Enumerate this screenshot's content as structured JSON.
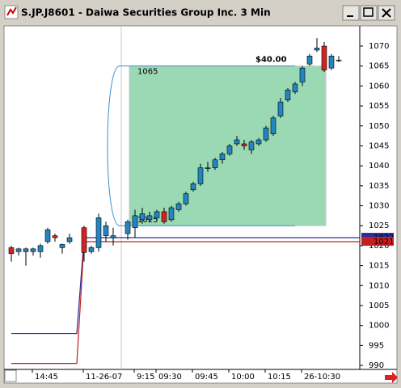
{
  "chart_data": {
    "type": "candlestick",
    "title": "S.JP.J8601 - Daiwa Securities Group Inc. 3 Min",
    "categories": [
      null,
      null,
      null,
      "14:45",
      null,
      null,
      null,
      null,
      null,
      null,
      "11-26-07",
      null,
      null,
      null,
      null,
      null,
      null,
      "9:15",
      null,
      null,
      "09:30",
      null,
      null,
      null,
      null,
      "09:45",
      null,
      null,
      null,
      null,
      "10:00",
      null,
      null,
      null,
      null,
      "10:15",
      null,
      null,
      null,
      null,
      "26-10:30",
      null,
      null,
      null,
      null,
      null
    ],
    "open": [
      1019.5,
      1018.5,
      1018.5,
      1018.5,
      1018.5,
      1021,
      1022.5,
      1019.5,
      1021,
      null,
      1024.5,
      1018.5,
      1019.5,
      1022.5,
      1022,
      null,
      1023,
      1024.5,
      1026.5,
      1026.5,
      1027,
      1028.5,
      1026.5,
      1029,
      1030.5,
      1034,
      1035.5,
      1039.5,
      1039.5,
      1041.5,
      1043,
      1045.5,
      1045.5,
      1044,
      1045.5,
      1046.5,
      1048,
      1052.5,
      1056.5,
      1058.5,
      1061,
      1065.5,
      1069,
      1070,
      1064.5,
      1066.5
    ],
    "high": [
      1020,
      1019.5,
      1019.5,
      1019.5,
      1020.5,
      1024.5,
      1023,
      1020.5,
      1023,
      null,
      1025,
      1020,
      1028,
      1026,
      1024.5,
      null,
      1026.5,
      1029,
      1029.5,
      1028.5,
      1029,
      1029.5,
      1030,
      1031,
      1033.5,
      1036,
      1040.5,
      1041,
      1042,
      1043.5,
      1045.5,
      1047.5,
      1046.5,
      1046.5,
      1047,
      1050,
      1052.5,
      1057,
      1059.5,
      1061,
      1065,
      1068,
      1072,
      1071,
      1068,
      1067.5
    ],
    "low": [
      1016,
      1017.5,
      1015,
      1017.5,
      1017,
      1020.5,
      1021,
      1018,
      1020.5,
      null,
      1016,
      1018,
      1018.5,
      1021,
      1020,
      null,
      1021.5,
      1022,
      1025.5,
      1026,
      1026,
      1025.5,
      1026,
      1028.5,
      1030,
      1033.5,
      1035,
      1038.5,
      1039,
      1040.5,
      1042.5,
      1045,
      1044,
      1043,
      1045,
      1046,
      1047.5,
      1052,
      1056,
      1058,
      1060,
      1065,
      1068.5,
      1063.5,
      1064,
      1066
    ],
    "close": [
      1018,
      1019.2,
      1019.2,
      1019.2,
      1020,
      1024,
      1022,
      1020.3,
      1022,
      null,
      1018.3,
      1019.5,
      1027,
      1025,
      1022.5,
      null,
      1026,
      1027.5,
      1028,
      1027.5,
      1028.5,
      1026,
      1029.5,
      1030.5,
      1033,
      1035.5,
      1039.5,
      1039.5,
      1041.5,
      1043,
      1045,
      1046.5,
      1045,
      1046,
      1046.5,
      1049.5,
      1052,
      1056,
      1059,
      1060.5,
      1064.5,
      1067.5,
      1069.5,
      1064,
      1067.5,
      1066.5
    ],
    "up_color": "#2386c0",
    "down_color": "#d02424",
    "ylim": [
      989,
      1075
    ],
    "yticks": [
      990,
      995,
      1000,
      1005,
      1010,
      1015,
      1020,
      1025,
      1030,
      1035,
      1040,
      1045,
      1050,
      1055,
      1060,
      1065,
      1070
    ],
    "lines": [
      {
        "color": "#2c2c9c",
        "values": [
          998,
          998,
          998,
          998,
          998,
          998,
          998,
          998,
          998,
          998,
          1022,
          1022,
          1022,
          1022,
          1022,
          1022,
          1022,
          1022,
          1022,
          1022,
          1022,
          1022,
          1022,
          1022,
          1022,
          1022,
          1022,
          1022,
          1022,
          1022,
          1022,
          1022,
          1022,
          1022,
          1022,
          1022,
          1022,
          1022,
          1022,
          1022,
          1022,
          1022,
          1022,
          1022,
          1022,
          1022
        ]
      },
      {
        "color": "#c42020",
        "values": [
          990.5,
          990.5,
          990.5,
          990.5,
          990.5,
          990.5,
          990.5,
          990.5,
          990.5,
          990.5,
          1021,
          1021,
          1021,
          1021,
          1021,
          1021,
          1021,
          1021,
          1021,
          1021,
          1021,
          1021,
          1021,
          1021,
          1021,
          1021,
          1021,
          1021,
          1021,
          1021,
          1021,
          1021,
          1021,
          1021,
          1021,
          1021,
          1021,
          1021,
          1021,
          1021,
          1021,
          1021,
          1021,
          1021,
          1021,
          1021
        ]
      }
    ],
    "range_box": {
      "high": 1065,
      "low": 1025,
      "label": "$40.00",
      "color": "#9ad9b3",
      "line_color": "#3b8fd2"
    }
  }
}
